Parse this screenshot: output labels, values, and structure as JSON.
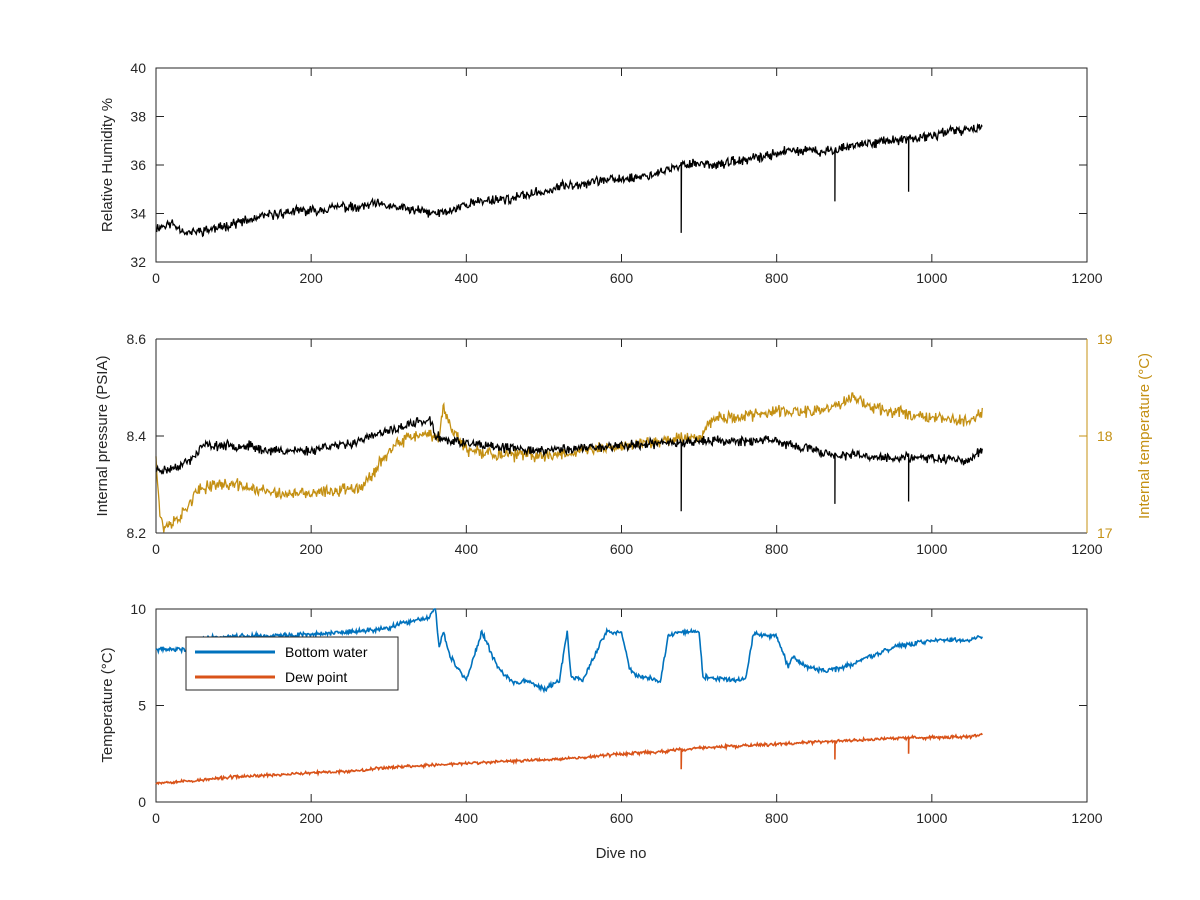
{
  "chart_data": [
    {
      "type": "line",
      "ylabel": "Relative Humidity %",
      "xlabel": "",
      "xlim": [
        0,
        1200
      ],
      "ylim": [
        32,
        40
      ],
      "xticks": [
        0,
        200,
        400,
        600,
        800,
        1000,
        1200
      ],
      "yticks": [
        32,
        34,
        36,
        38,
        40
      ],
      "grid": false,
      "colors": {
        "series": "#000000"
      },
      "series": [
        {
          "x": [
            0,
            20,
            40,
            60,
            80,
            100,
            120,
            140,
            160,
            180,
            200,
            220,
            240,
            260,
            280,
            300,
            320,
            340,
            360,
            380,
            400,
            420,
            440,
            460,
            480,
            500,
            520,
            540,
            560,
            580,
            600,
            620,
            640,
            660,
            680,
            700,
            720,
            740,
            760,
            780,
            800,
            820,
            840,
            860,
            880,
            900,
            920,
            940,
            960,
            980,
            1000,
            1020,
            1040,
            1065
          ],
          "y": [
            33.4,
            33.6,
            33.2,
            33.3,
            33.4,
            33.6,
            33.7,
            33.9,
            34.0,
            34.1,
            34.1,
            34.2,
            34.3,
            34.2,
            34.4,
            34.3,
            34.2,
            34.1,
            34.0,
            34.1,
            34.4,
            34.5,
            34.6,
            34.6,
            34.8,
            34.9,
            35.1,
            35.2,
            35.3,
            35.4,
            35.4,
            35.5,
            35.6,
            35.8,
            36.0,
            36.1,
            36.0,
            36.1,
            36.2,
            36.3,
            36.5,
            36.6,
            36.6,
            36.5,
            36.7,
            36.8,
            36.9,
            37.0,
            37.0,
            37.1,
            37.2,
            37.4,
            37.4,
            37.6
          ],
          "spikes": [
            {
              "x": 677,
              "y": 33.2
            },
            {
              "x": 875,
              "y": 34.5
            },
            {
              "x": 970,
              "y": 34.9
            }
          ],
          "noise": 0.25
        }
      ]
    },
    {
      "type": "line",
      "xlabel": "",
      "xlim": [
        0,
        1200
      ],
      "ylabel_left": "Internal pressure (PSIA)",
      "ylabel_right": "Internal temperature (°C)",
      "ylim_left": [
        8.2,
        8.6
      ],
      "ylim_right": [
        17,
        19
      ],
      "xticks": [
        0,
        200,
        400,
        600,
        800,
        1000,
        1200
      ],
      "yticks_left": [
        "8.2",
        "8.4",
        "8.6"
      ],
      "yticks_right": [
        17,
        18,
        19
      ],
      "grid": false,
      "colors": {
        "pressure": "#000000",
        "temperature": "#c49013",
        "right_axis": "#c49013"
      },
      "series": [
        {
          "axis": "left",
          "x": [
            0,
            15,
            30,
            45,
            60,
            80,
            100,
            120,
            140,
            160,
            180,
            200,
            220,
            240,
            260,
            280,
            300,
            320,
            340,
            355,
            360,
            380,
            400,
            420,
            450,
            500,
            550,
            600,
            650,
            700,
            750,
            800,
            820,
            850,
            880,
            900,
            950,
            1000,
            1050,
            1065
          ],
          "y": [
            8.33,
            8.33,
            8.34,
            8.35,
            8.38,
            8.38,
            8.38,
            8.38,
            8.37,
            8.37,
            8.37,
            8.37,
            8.38,
            8.38,
            8.39,
            8.4,
            8.41,
            8.42,
            8.43,
            8.43,
            8.4,
            8.39,
            8.385,
            8.38,
            8.375,
            8.37,
            8.375,
            8.38,
            8.385,
            8.39,
            8.39,
            8.39,
            8.38,
            8.37,
            8.36,
            8.36,
            8.355,
            8.355,
            8.35,
            8.375
          ],
          "spikes": [
            {
              "x": 677,
              "y": 8.245
            },
            {
              "x": 875,
              "y": 8.26
            },
            {
              "x": 970,
              "y": 8.265
            }
          ],
          "noise": 0.012
        },
        {
          "axis": "right",
          "x": [
            0,
            5,
            10,
            20,
            35,
            50,
            70,
            100,
            130,
            160,
            200,
            240,
            270,
            290,
            310,
            330,
            350,
            365,
            370,
            380,
            400,
            450,
            500,
            550,
            600,
            650,
            700,
            720,
            750,
            800,
            850,
            890,
            900,
            920,
            950,
            1000,
            1050,
            1065
          ],
          "y": [
            17.8,
            17.2,
            17.05,
            17.1,
            17.2,
            17.4,
            17.5,
            17.5,
            17.45,
            17.4,
            17.4,
            17.45,
            17.5,
            17.75,
            17.9,
            18.0,
            18.0,
            18.0,
            18.3,
            18.1,
            17.85,
            17.8,
            17.8,
            17.85,
            17.9,
            17.95,
            18.0,
            18.2,
            18.2,
            18.25,
            18.25,
            18.35,
            18.4,
            18.3,
            18.25,
            18.2,
            18.15,
            18.25
          ],
          "noise": 0.08
        }
      ]
    },
    {
      "type": "line",
      "ylabel": "Temperature (°C)",
      "xlabel": "Dive no",
      "xlim": [
        0,
        1200
      ],
      "ylim": [
        0,
        10
      ],
      "xticks": [
        0,
        200,
        400,
        600,
        800,
        1000,
        1200
      ],
      "yticks": [
        0,
        5,
        10
      ],
      "grid": false,
      "legend": {
        "position": "top-left",
        "entries": [
          {
            "label": "Bottom water",
            "color": "#0072bd"
          },
          {
            "label": "Dew point",
            "color": "#d95319"
          }
        ]
      },
      "series": [
        {
          "name": "Bottom water",
          "color": "#0072bd",
          "x": [
            0,
            40,
            60,
            100,
            150,
            200,
            250,
            300,
            320,
            350,
            360,
            365,
            370,
            380,
            400,
            420,
            440,
            460,
            480,
            500,
            520,
            530,
            535,
            550,
            580,
            600,
            610,
            620,
            640,
            650,
            660,
            670,
            690,
            700,
            705,
            720,
            760,
            770,
            800,
            815,
            820,
            840,
            860,
            880,
            900,
            950,
            1000,
            1050,
            1065
          ],
          "y": [
            7.9,
            7.9,
            8.5,
            8.6,
            8.6,
            8.7,
            8.8,
            9.0,
            9.3,
            9.5,
            10.0,
            8.0,
            8.8,
            7.5,
            6.3,
            8.8,
            7.0,
            6.2,
            6.3,
            5.8,
            6.3,
            8.8,
            6.5,
            6.3,
            8.8,
            8.8,
            7.0,
            6.5,
            6.4,
            6.2,
            8.6,
            8.8,
            8.8,
            8.8,
            6.5,
            6.4,
            6.3,
            8.7,
            8.6,
            7.0,
            7.5,
            7.0,
            6.8,
            6.9,
            7.2,
            8.0,
            8.4,
            8.4,
            8.6
          ],
          "noise": 0.15
        },
        {
          "name": "Dew point",
          "color": "#d95319",
          "x": [
            0,
            50,
            100,
            150,
            200,
            250,
            300,
            350,
            400,
            450,
            500,
            550,
            600,
            650,
            700,
            750,
            800,
            850,
            900,
            950,
            1000,
            1050,
            1065
          ],
          "y": [
            1.0,
            1.1,
            1.3,
            1.4,
            1.5,
            1.6,
            1.8,
            1.9,
            2.0,
            2.1,
            2.2,
            2.3,
            2.5,
            2.6,
            2.8,
            2.9,
            3.0,
            3.1,
            3.2,
            3.3,
            3.35,
            3.4,
            3.5
          ],
          "spikes": [
            {
              "x": 677,
              "y": 1.7
            },
            {
              "x": 875,
              "y": 2.2
            },
            {
              "x": 970,
              "y": 2.5
            }
          ],
          "noise": 0.1
        }
      ]
    }
  ]
}
